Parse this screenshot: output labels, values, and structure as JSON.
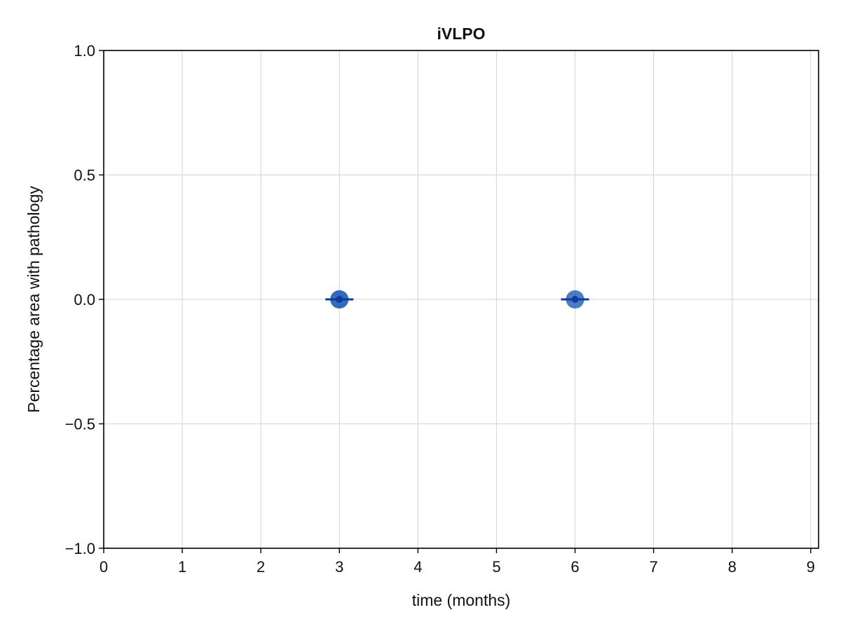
{
  "chart_data": {
    "type": "scatter",
    "title": "iVLPO",
    "xlabel": "time (months)",
    "ylabel": "Percentage area with pathology",
    "xlim": [
      0,
      9.1
    ],
    "ylim": [
      -1.0,
      1.0
    ],
    "xticks": [
      0,
      1,
      2,
      3,
      4,
      5,
      6,
      7,
      8,
      9
    ],
    "yticks": [
      -1.0,
      -0.5,
      0.0,
      0.5,
      1.0
    ],
    "x_tick_labels": [
      "0",
      "1",
      "2",
      "3",
      "4",
      "5",
      "6",
      "7",
      "8",
      "9"
    ],
    "y_tick_labels": [
      "−1.0",
      "−0.5",
      "0.0",
      "0.5",
      "1.0"
    ],
    "grid": true,
    "series": [
      {
        "points": [
          {
            "x": 3,
            "y": 0.0
          },
          {
            "x": 3,
            "y": 0.0
          },
          {
            "x": 3,
            "y": 0.0
          },
          {
            "x": 6,
            "y": 0.0
          },
          {
            "x": 6,
            "y": 0.0
          }
        ],
        "color": "#1f5bb4"
      },
      {
        "points": [
          {
            "x": 3,
            "y": 0.0,
            "error": 0.0
          },
          {
            "x": 6,
            "y": 0.0,
            "error": 0.0
          }
        ],
        "color": "#0a3d9c"
      }
    ]
  }
}
